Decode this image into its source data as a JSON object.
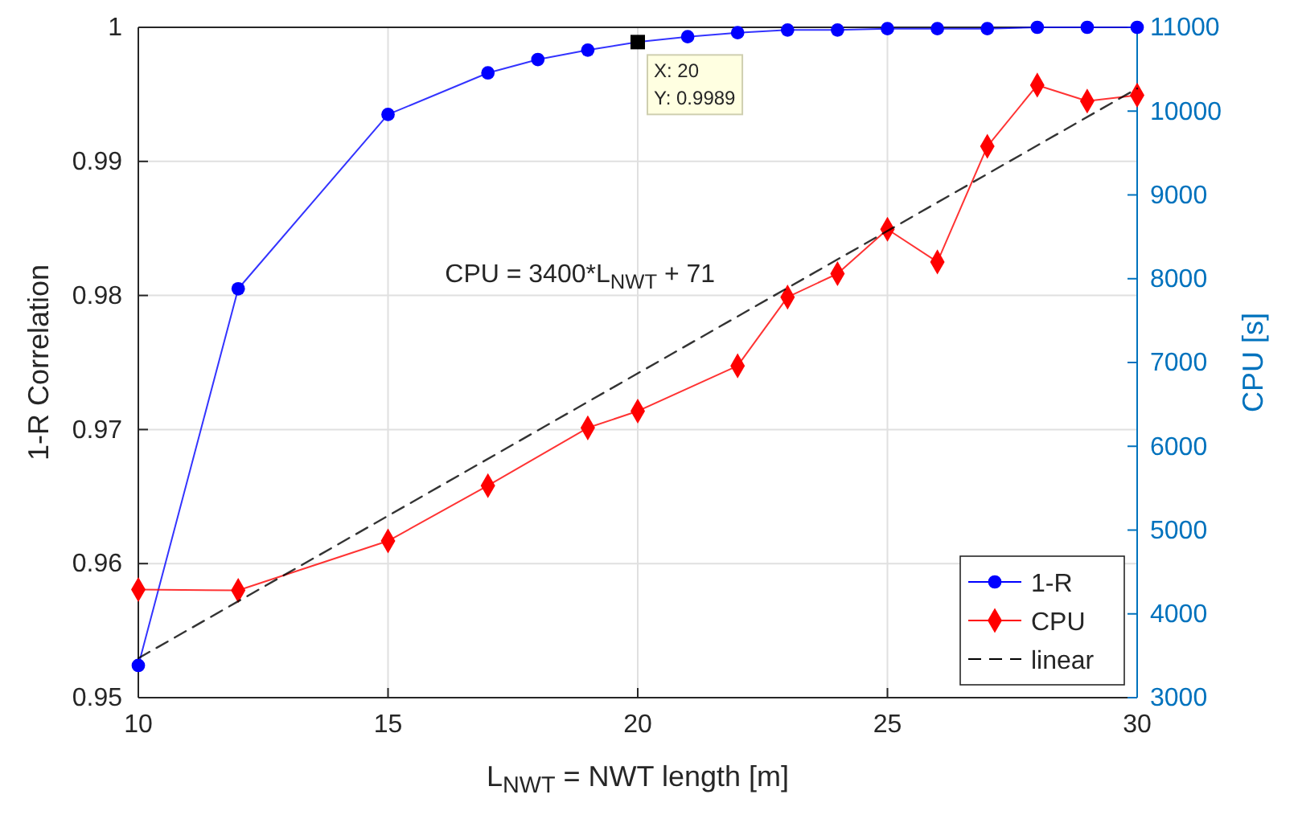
{
  "chart_data": {
    "type": "line",
    "xlabel": "L$_{NWT}$ = NWT length [m]",
    "ylabel": "1-R Correlation",
    "y2label": "CPU [s]",
    "xlim": [
      10,
      30
    ],
    "xticks": [
      10,
      15,
      20,
      25,
      30
    ],
    "ylim": [
      0.95,
      1
    ],
    "yticks": [
      0.95,
      0.96,
      0.97,
      0.98,
      0.99,
      1
    ],
    "y2lim": [
      3000,
      11000
    ],
    "y2ticks": [
      3000,
      4000,
      5000,
      6000,
      7000,
      8000,
      9000,
      10000,
      11000
    ],
    "grid": true,
    "legend": "bottom right",
    "series": [
      {
        "name": "1-R",
        "color": "#0000ff",
        "marker": "circle",
        "axis": "y",
        "x": [
          10,
          12,
          15,
          17,
          18,
          19,
          20,
          21,
          22,
          23,
          24,
          25,
          26,
          27,
          28,
          29,
          30
        ],
        "values": [
          0.9524,
          0.9805,
          0.9935,
          0.9966,
          0.9976,
          0.9983,
          0.9989,
          0.9993,
          0.9996,
          0.9998,
          0.9998,
          0.9999,
          0.9999,
          0.9999,
          1,
          1,
          1
        ]
      },
      {
        "name": "CPU",
        "color": "#ff0000",
        "marker": "diamond",
        "axis": "y2",
        "x": [
          10,
          12,
          15,
          17,
          19,
          20,
          22,
          23,
          24,
          25,
          26,
          27,
          28,
          29,
          30
        ],
        "values": [
          4290,
          4280,
          4870,
          5530,
          6220,
          6420,
          6960,
          7780,
          8060,
          8590,
          8200,
          9580,
          10310,
          10120,
          10190
        ]
      },
      {
        "name": "linear",
        "color": "#000000",
        "marker": "none",
        "line_style": "dashed",
        "axis": "y2",
        "x": [
          10,
          30
        ],
        "values": [
          3470,
          10270
        ]
      }
    ],
    "annotations": [
      "CPU = 3400*L$_{NWT}$ + 71",
      {
        "text": "X: 20\nY: 0.9989",
        "x": 20,
        "y": 0.9989
      }
    ]
  }
}
